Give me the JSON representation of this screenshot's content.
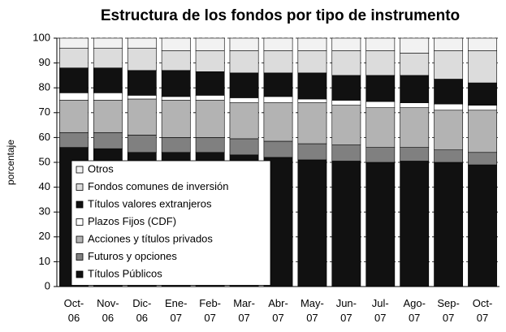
{
  "chart_data": {
    "type": "stacked_bar",
    "title": "Estructura de los fondos por tipo de instrumento",
    "ylabel": "porcentaje",
    "categories": [
      "Oct-06",
      "Nov-06",
      "Dic-06",
      "Ene-07",
      "Feb-07",
      "Mar-07",
      "Abr-07",
      "May-07",
      "Jun-07",
      "Jul-07",
      "Ago-07",
      "Sep-07",
      "Oct-07"
    ],
    "series": [
      {
        "name": "Títulos Públicos",
        "color": "#111111",
        "values": [
          56,
          55.5,
          54,
          54,
          54,
          53,
          52,
          51,
          50.5,
          50,
          50.5,
          50,
          49
        ]
      },
      {
        "name": "Futuros y opciones",
        "color": "#808080",
        "values": [
          6,
          6.5,
          7,
          6,
          6,
          6.5,
          6.5,
          6.5,
          6.5,
          6,
          5.5,
          5,
          5
        ]
      },
      {
        "name": "Acciones y títulos privados",
        "color": "#b3b3b3",
        "values": [
          13,
          13,
          14.5,
          15,
          15,
          14.5,
          15.5,
          16.5,
          16,
          16,
          16,
          16,
          17
        ]
      },
      {
        "name": "Plazos Fijos (CDF)",
        "color": "#ffffff",
        "values": [
          3,
          3,
          1.5,
          1.5,
          2,
          2,
          2.5,
          1.5,
          2,
          2.5,
          2,
          2.5,
          2
        ]
      },
      {
        "name": "Títulos valores extranjeros",
        "color": "#111111",
        "values": [
          10,
          10,
          10,
          10.5,
          9.5,
          10,
          9.5,
          10.5,
          10,
          10.5,
          11,
          10,
          9
        ]
      },
      {
        "name": "Fondos comunes de inversión",
        "color": "#dcdcdc",
        "values": [
          8,
          8,
          9,
          8,
          8.5,
          9,
          9,
          9,
          10,
          10,
          9,
          11.5,
          13
        ]
      },
      {
        "name": "Otros",
        "color": "#f2f2f2",
        "values": [
          4,
          4,
          4,
          5,
          5,
          5,
          5,
          5,
          5,
          5,
          6,
          5,
          5
        ]
      }
    ],
    "ylim": [
      0,
      100
    ],
    "yticks": [
      0,
      10,
      20,
      30,
      40,
      50,
      60,
      70,
      80,
      90,
      100
    ],
    "grid": true
  }
}
